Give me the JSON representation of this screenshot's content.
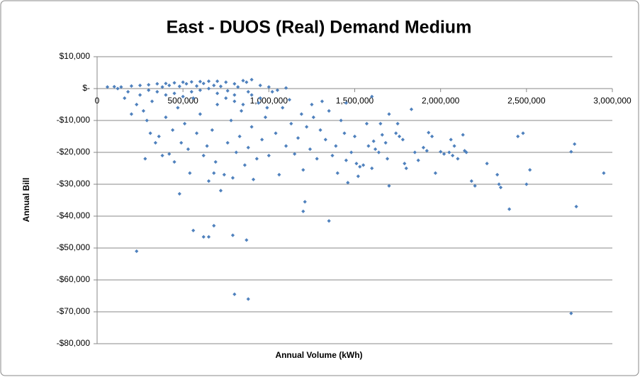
{
  "chart_data": {
    "type": "scatter",
    "title": "East -  DUOS (Real) Demand Medium",
    "x_label": "Annual Volume (kWh)",
    "y_label": "Annual Bill",
    "color": "#4f81bd",
    "grid": true,
    "xlim": [
      0,
      3000000
    ],
    "xticks": [
      0,
      {
        "value": 500000,
        "label": "500,000"
      },
      {
        "value": 1000000,
        "label": "1,000,000"
      },
      {
        "value": 1500000,
        "label": "1,500,000"
      },
      {
        "value": 2000000,
        "label": "2,000,000"
      },
      {
        "value": 2500000,
        "label": "2,500,000"
      },
      {
        "value": 3000000,
        "label": "3,000,000"
      }
    ],
    "ylim": [
      -80000,
      10000
    ],
    "yticks": [
      {
        "value": 10000,
        "label": "$10,000"
      },
      {
        "value": 0,
        "label": "$-"
      },
      {
        "value": -10000,
        "label": "-$10,000"
      },
      {
        "value": -20000,
        "label": "-$20,000"
      },
      {
        "value": -30000,
        "label": "-$30,000"
      },
      {
        "value": -40000,
        "label": "-$40,000"
      },
      {
        "value": -50000,
        "label": "-$50,000"
      },
      {
        "value": -60000,
        "label": "-$60,000"
      },
      {
        "value": -70000,
        "label": "-$70,000"
      },
      {
        "value": -80000,
        "label": "-$80,000"
      }
    ],
    "x": [
      230000,
      280000,
      480000,
      560000,
      620000,
      650000,
      680000,
      790000,
      870000,
      800000,
      880000,
      1200000,
      1210000,
      1350000,
      2400000,
      2760000,
      2790000,
      2950000,
      2760000,
      2780000,
      2520000,
      2500000,
      2480000,
      2450000,
      2350000,
      2340000,
      2330000,
      2270000,
      2200000,
      2180000,
      2150000,
      2140000,
      2130000,
      2100000,
      2080000,
      2070000,
      2060000,
      2050000,
      2020000,
      2000000,
      1970000,
      1950000,
      1930000,
      1920000,
      1900000,
      1870000,
      1850000,
      1830000,
      1800000,
      1790000,
      1780000,
      1760000,
      1740000,
      1700000,
      1690000,
      1680000,
      1660000,
      1650000,
      1640000,
      1620000,
      1610000,
      1600000,
      1580000,
      1570000,
      1550000,
      1530000,
      1520000,
      1510000,
      1500000,
      1480000,
      1460000,
      1450000,
      1440000,
      1420000,
      1400000,
      1390000,
      1370000,
      1350000,
      1330000,
      1310000,
      1300000,
      1280000,
      1260000,
      1240000,
      1220000,
      1200000,
      1190000,
      1170000,
      1150000,
      1130000,
      1100000,
      1080000,
      1060000,
      1040000,
      1020000,
      1000000,
      980000,
      960000,
      950000,
      930000,
      910000,
      900000,
      880000,
      870000,
      860000,
      840000,
      830000,
      810000,
      800000,
      790000,
      780000,
      760000,
      740000,
      720000,
      700000,
      690000,
      680000,
      670000,
      650000,
      640000,
      620000,
      600000,
      580000,
      560000,
      540000,
      530000,
      510000,
      490000,
      470000,
      450000,
      440000,
      420000,
      400000,
      380000,
      360000,
      340000,
      320000,
      310000,
      290000,
      270000,
      250000,
      230000,
      200000,
      180000,
      160000,
      140000,
      120000,
      100000,
      60000,
      200000,
      250000,
      300000,
      350000,
      400000,
      450000,
      500000,
      550000,
      600000,
      650000,
      700000,
      750000,
      800000,
      850000,
      900000,
      950000,
      1000000,
      1050000,
      1100000,
      300000,
      350000,
      400000,
      450000,
      500000,
      550000,
      600000,
      650000,
      700000,
      750000,
      800000,
      850000,
      900000,
      380000,
      420000,
      480000,
      520000,
      580000,
      620000,
      680000,
      720000,
      760000,
      820000,
      880000,
      940000,
      990000,
      1120000,
      1250000,
      1450000,
      1600000,
      1700000,
      1750000
    ],
    "values": [
      -51000,
      -22000,
      -33000,
      -44500,
      -46500,
      -46500,
      -43000,
      -46000,
      -47500,
      -64500,
      -66000,
      -38500,
      -35500,
      -41500,
      -37800,
      -70500,
      -37000,
      -26500,
      -19800,
      -17400,
      -25500,
      -30000,
      -14000,
      -15000,
      -31000,
      -30000,
      -27000,
      -23500,
      -30500,
      -29000,
      -20000,
      -19500,
      -14500,
      -22000,
      -18000,
      -21000,
      -16000,
      -20000,
      -20500,
      -19800,
      -26500,
      -15000,
      -13800,
      -19500,
      -18500,
      -22500,
      -20000,
      -6500,
      -25000,
      -23500,
      -16000,
      -15000,
      -14000,
      -30500,
      -22000,
      -17000,
      -14500,
      -11000,
      -20000,
      -19000,
      -16500,
      -25000,
      -18000,
      -11000,
      -24000,
      -24500,
      -27500,
      -23500,
      -15000,
      -20000,
      -29500,
      -22500,
      -14000,
      -10000,
      -26500,
      -18000,
      -21000,
      -7000,
      -16000,
      -4000,
      -13000,
      -22000,
      -9000,
      -19000,
      -12000,
      -25500,
      -8000,
      -15500,
      -20500,
      -11000,
      -18000,
      -6000,
      -27000,
      -14000,
      -1000,
      -21000,
      -9000,
      -16000,
      -3000,
      -22000,
      -28500,
      -12000,
      -18500,
      2000,
      -24000,
      -7000,
      -15000,
      -20000,
      -2000,
      -28000,
      -10000,
      -17000,
      -27000,
      -32000,
      -5000,
      -23000,
      -26500,
      -13000,
      -29000,
      -18000,
      -21000,
      -8000,
      -14000,
      -3000,
      -26500,
      -19000,
      -11000,
      -17000,
      -6000,
      -23000,
      -13000,
      -20500,
      -9000,
      -21000,
      -15000,
      -17000,
      -4000,
      -14000,
      -10000,
      -7000,
      -2000,
      -5000,
      -8000,
      -1000,
      -3000,
      500,
      0,
      600,
      500,
      800,
      1000,
      1200,
      1500,
      1600,
      1800,
      2000,
      2100,
      2200,
      2300,
      2300,
      2000,
      1500,
      2500,
      2800,
      1000,
      500,
      -500,
      200,
      -500,
      -1000,
      -2000,
      -1500,
      -2500,
      -1000,
      -500,
      0,
      -1500,
      -3000,
      -4000,
      -5000,
      -2000,
      500,
      1000,
      700,
      1500,
      800,
      1600,
      1000,
      700,
      -700,
      500,
      -1000,
      -4500,
      -6000,
      -3500,
      -5000,
      -4500,
      -2500,
      -8000,
      -11000
    ]
  }
}
